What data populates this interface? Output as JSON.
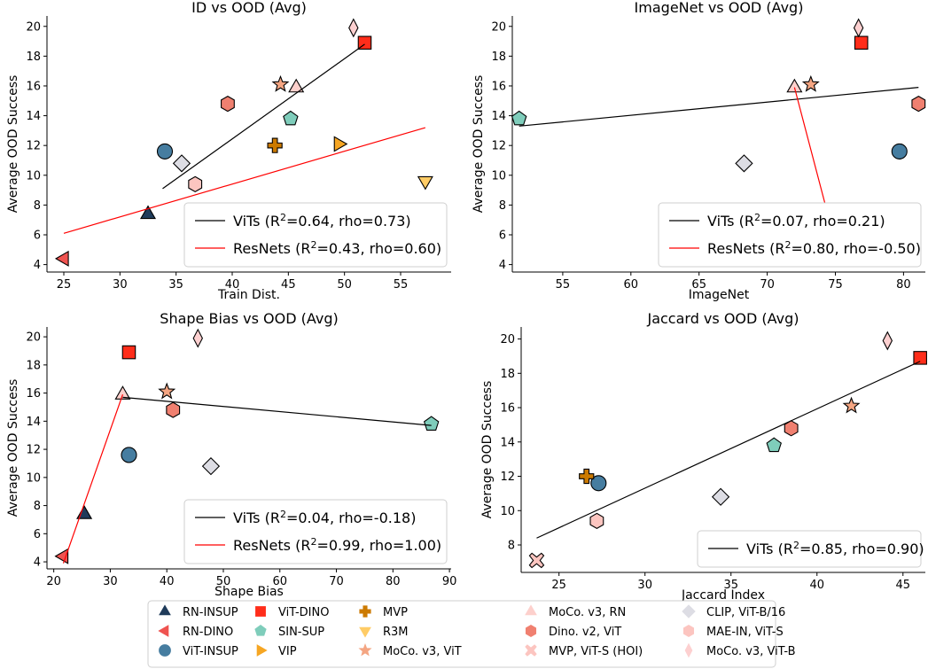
{
  "figure": {
    "legend": [
      {
        "name": "RN-INSUP",
        "marker": "triangle-up",
        "color": "#1f3b5a"
      },
      {
        "name": "RN-DINO",
        "marker": "triangle-left",
        "color": "#ef5350"
      },
      {
        "name": "ViT-INSUP",
        "marker": "circle",
        "color": "#467da0"
      },
      {
        "name": "ViT-DINO",
        "marker": "square",
        "color": "#ff2d1a"
      },
      {
        "name": "SIN-SUP",
        "marker": "pentagon",
        "color": "#7fcdbb"
      },
      {
        "name": "VIP",
        "marker": "triangle-right",
        "color": "#f6a623"
      },
      {
        "name": "MVP",
        "marker": "plus",
        "color": "#cc7a00"
      },
      {
        "name": "R3M",
        "marker": "triangle-down",
        "color": "#ffcc66"
      },
      {
        "name": "MoCo. v3, ViT",
        "marker": "star",
        "color": "#f4a582"
      },
      {
        "name": "MoCo. v3, RN",
        "marker": "triangle-up",
        "color": "#fdd0cc"
      },
      {
        "name": "Dino. v2, ViT",
        "marker": "hexagon",
        "color": "#f08070"
      },
      {
        "name": "MVP, ViT-S (HOI)",
        "marker": "x",
        "color": "#fcc5c0"
      },
      {
        "name": "CLIP, ViT-B/16",
        "marker": "diamond",
        "color": "#dddde4"
      },
      {
        "name": "MAE-IN, ViT-S",
        "marker": "hexagon",
        "color": "#fcc5c0"
      },
      {
        "name": "MoCo. v3, ViT-B",
        "marker": "thin-diamond",
        "color": "#fdd0d0"
      }
    ]
  },
  "chart_data": [
    {
      "type": "scatter",
      "title": "ID vs OOD (Avg)",
      "xlabel": "Train Dist.",
      "ylabel": "Average OOD Success",
      "xlim": [
        23.5,
        59.5
      ],
      "ylim": [
        3.5,
        20.7
      ],
      "xticks": [
        25,
        30,
        35,
        40,
        45,
        50,
        55
      ],
      "yticks": [
        4,
        6,
        8,
        10,
        12,
        14,
        16,
        18,
        20
      ],
      "points": [
        {
          "series": "RN-INSUP",
          "x": 32.5,
          "y": 7.4
        },
        {
          "series": "RN-DINO",
          "x": 25.0,
          "y": 4.4
        },
        {
          "series": "ViT-INSUP",
          "x": 34.0,
          "y": 11.6
        },
        {
          "series": "ViT-DINO",
          "x": 51.8,
          "y": 18.9
        },
        {
          "series": "SIN-SUP",
          "x": 45.2,
          "y": 13.8
        },
        {
          "series": "VIP",
          "x": 49.5,
          "y": 12.1
        },
        {
          "series": "MVP",
          "x": 43.8,
          "y": 12.0
        },
        {
          "series": "R3M",
          "x": 57.2,
          "y": 9.6
        },
        {
          "series": "MoCo. v3, ViT",
          "x": 44.3,
          "y": 16.1
        },
        {
          "series": "MoCo. v3, RN",
          "x": 45.7,
          "y": 15.9
        },
        {
          "series": "Dino. v2, ViT",
          "x": 39.6,
          "y": 14.8
        },
        {
          "series": "MVP, ViT-S (HOI)",
          "x": 40.0,
          "y": 7.1
        },
        {
          "series": "CLIP, ViT-B/16",
          "x": 35.5,
          "y": 10.8
        },
        {
          "series": "MAE-IN, ViT-S",
          "x": 36.7,
          "y": 9.4
        },
        {
          "series": "MoCo. v3, ViT-B",
          "x": 50.8,
          "y": 19.9
        }
      ],
      "fits": [
        {
          "name": "ViTs",
          "color": "#000000",
          "x": [
            33.8,
            51.8
          ],
          "y": [
            9.1,
            18.8
          ],
          "r2": "0.64",
          "rho": "0.73"
        },
        {
          "name": "ResNets",
          "color": "#ff0000",
          "x": [
            25.0,
            57.2
          ],
          "y": [
            6.1,
            13.2
          ],
          "r2": "0.43",
          "rho": "0.60"
        }
      ],
      "legend_position": "lower-right"
    },
    {
      "type": "scatter",
      "title": "ImageNet vs OOD (Avg)",
      "xlabel": "ImageNet",
      "ylabel": "Average OOD Success",
      "xlim": [
        51.3,
        81.6
      ],
      "ylim": [
        3.5,
        20.7
      ],
      "xticks": [
        55,
        60,
        65,
        70,
        75,
        80
      ],
      "yticks": [
        4,
        6,
        8,
        10,
        12,
        14,
        16,
        18,
        20
      ],
      "points": [
        {
          "series": "RN-INSUP",
          "x": 76.1,
          "y": 7.4
        },
        {
          "series": "RN-DINO",
          "x": 75.3,
          "y": 4.4
        },
        {
          "series": "ViT-INSUP",
          "x": 79.7,
          "y": 11.6
        },
        {
          "series": "ViT-DINO",
          "x": 76.9,
          "y": 18.9
        },
        {
          "series": "SIN-SUP",
          "x": 51.8,
          "y": 13.8
        },
        {
          "series": "MoCo. v3, ViT",
          "x": 73.2,
          "y": 16.1
        },
        {
          "series": "MoCo. v3, RN",
          "x": 72.0,
          "y": 15.9
        },
        {
          "series": "Dino. v2, ViT",
          "x": 81.1,
          "y": 14.8
        },
        {
          "series": "CLIP, ViT-B/16",
          "x": 68.3,
          "y": 10.8
        },
        {
          "series": "MoCo. v3, ViT-B",
          "x": 76.7,
          "y": 19.9
        }
      ],
      "fits": [
        {
          "name": "ViTs",
          "color": "#000000",
          "x": [
            51.8,
            81.1
          ],
          "y": [
            13.3,
            15.9
          ],
          "r2": "0.07",
          "rho": "0.21"
        },
        {
          "name": "ResNets",
          "color": "#ff0000",
          "x": [
            72.0,
            75.3
          ],
          "y": [
            15.9,
            4.4
          ],
          "r2": "0.80",
          "rho": "-0.50"
        }
      ],
      "legend_position": "lower-right"
    },
    {
      "type": "scatter",
      "title": "Shape Bias vs OOD (Avg)",
      "xlabel": "Shape Bias",
      "ylabel": "Average OOD Success",
      "xlim": [
        18.8,
        90.3
      ],
      "ylim": [
        3.5,
        20.7
      ],
      "xticks": [
        20,
        30,
        40,
        50,
        60,
        70,
        80,
        90
      ],
      "yticks": [
        4,
        6,
        8,
        10,
        12,
        14,
        16,
        18,
        20
      ],
      "points": [
        {
          "series": "RN-INSUP",
          "x": 25.4,
          "y": 7.4
        },
        {
          "series": "RN-DINO",
          "x": 21.7,
          "y": 4.4
        },
        {
          "series": "ViT-INSUP",
          "x": 33.3,
          "y": 11.6
        },
        {
          "series": "ViT-DINO",
          "x": 33.3,
          "y": 18.9
        },
        {
          "series": "SIN-SUP",
          "x": 86.8,
          "y": 13.8
        },
        {
          "series": "MoCo. v3, ViT",
          "x": 40.0,
          "y": 16.1
        },
        {
          "series": "MoCo. v3, RN",
          "x": 32.2,
          "y": 15.9
        },
        {
          "series": "Dino. v2, ViT",
          "x": 41.1,
          "y": 14.8
        },
        {
          "series": "CLIP, ViT-B/16",
          "x": 47.8,
          "y": 10.8
        },
        {
          "series": "MoCo. v3, ViT-B",
          "x": 45.5,
          "y": 19.9
        }
      ],
      "fits": [
        {
          "name": "ViTs",
          "color": "#000000",
          "x": [
            32.2,
            86.8
          ],
          "y": [
            15.7,
            13.7
          ],
          "r2": "0.04",
          "rho": "-0.18"
        },
        {
          "name": "ResNets",
          "color": "#ff0000",
          "x": [
            21.7,
            32.2
          ],
          "y": [
            3.9,
            15.9
          ],
          "r2": "0.99",
          "rho": "1.00"
        }
      ],
      "legend_position": "lower-right"
    },
    {
      "type": "scatter",
      "title": "Jaccard vs OOD (Avg)",
      "xlabel": "Jaccard Index",
      "ylabel": "Average OOD Success",
      "xlim": [
        22.8,
        46.3
      ],
      "ylim": [
        6.4,
        20.7
      ],
      "xticks": [
        25,
        30,
        35,
        40,
        45
      ],
      "yticks": [
        8,
        10,
        12,
        14,
        16,
        18,
        20
      ],
      "points": [
        {
          "series": "ViT-INSUP",
          "x": 27.3,
          "y": 11.6
        },
        {
          "series": "ViT-DINO",
          "x": 46.0,
          "y": 18.9
        },
        {
          "series": "SIN-SUP",
          "x": 37.5,
          "y": 13.8
        },
        {
          "series": "MVP",
          "x": 26.6,
          "y": 12.0
        },
        {
          "series": "MoCo. v3, ViT",
          "x": 42.0,
          "y": 16.1
        },
        {
          "series": "Dino. v2, ViT",
          "x": 38.5,
          "y": 14.8
        },
        {
          "series": "MVP, ViT-S (HOI)",
          "x": 23.7,
          "y": 7.1
        },
        {
          "series": "CLIP, ViT-B/16",
          "x": 34.4,
          "y": 10.8
        },
        {
          "series": "MAE-IN, ViT-S",
          "x": 27.2,
          "y": 9.4
        },
        {
          "series": "MoCo. v3, ViT-B",
          "x": 44.1,
          "y": 19.9
        }
      ],
      "fits": [
        {
          "name": "ViTs",
          "color": "#000000",
          "x": [
            23.7,
            46.0
          ],
          "y": [
            8.4,
            18.7
          ],
          "r2": "0.85",
          "rho": "0.90"
        }
      ],
      "legend_position": "lower-right"
    }
  ]
}
